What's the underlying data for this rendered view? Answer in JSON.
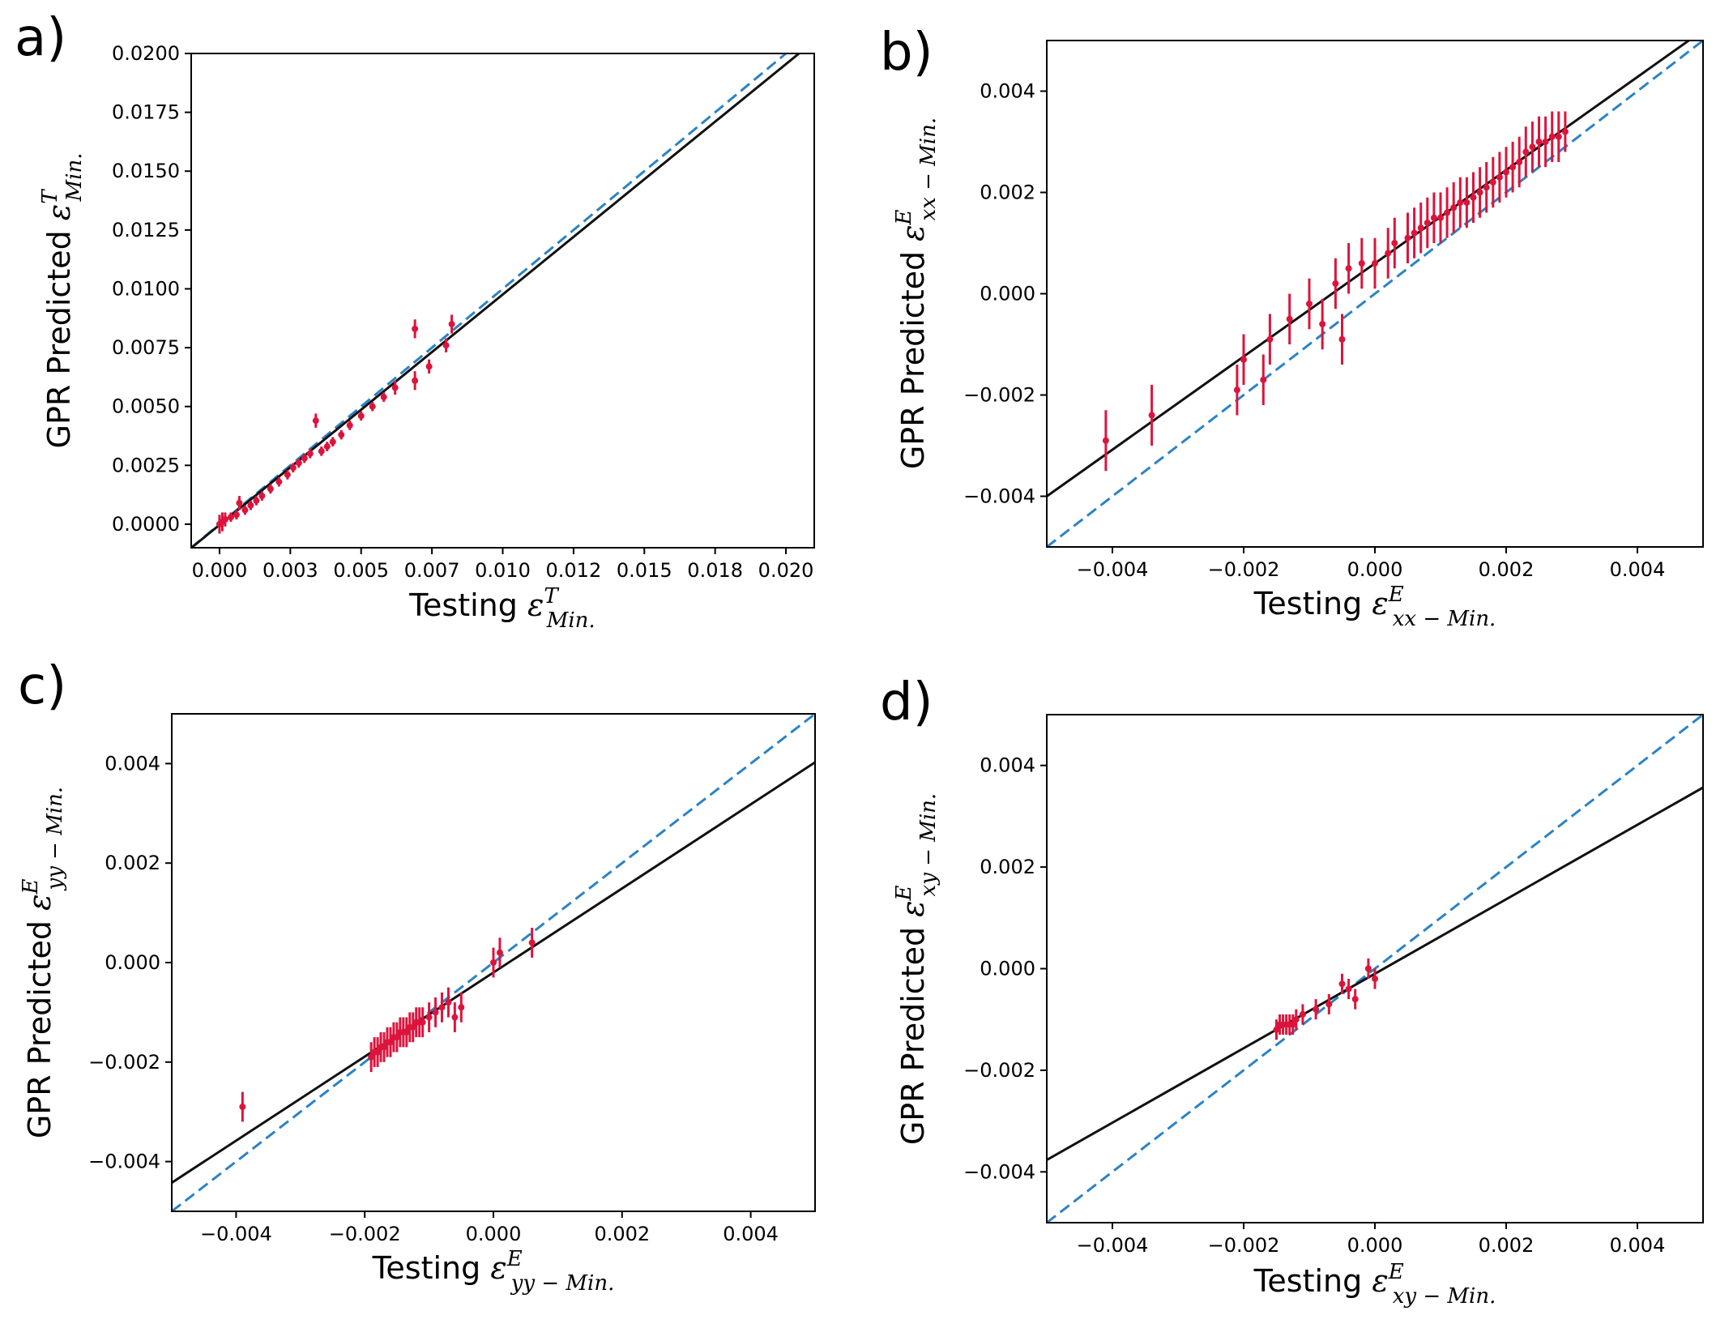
{
  "chart_data": [
    {
      "id": "a",
      "panel_label": "a)",
      "type": "scatter",
      "xlabel_prefix": "Testing ",
      "ylabel_prefix": "GPR Predicted ",
      "symbol": "ε",
      "superscript": "T",
      "subscript": "Min.",
      "xlim": [
        -0.001,
        0.021
      ],
      "ylim": [
        -0.001,
        0.02
      ],
      "xticks": [
        0.0,
        0.0025,
        0.005,
        0.0075,
        0.01,
        0.0125,
        0.015,
        0.0175,
        0.02
      ],
      "xtick_labels": [
        "0.000",
        "0.003",
        "0.005",
        "0.007",
        "0.010",
        "0.012",
        "0.015",
        "0.018",
        "0.020"
      ],
      "yticks": [
        0.0,
        0.0025,
        0.005,
        0.0075,
        0.01,
        0.0125,
        0.015,
        0.0175,
        0.02
      ],
      "ytick_labels": [
        "0.0000",
        "0.0025",
        "0.0050",
        "0.0075",
        "0.0100",
        "0.0125",
        "0.0150",
        "0.0175",
        "0.0200"
      ],
      "fit_line": {
        "slope": 0.9789,
        "intercept": -3e-05
      },
      "reference_line": {
        "slope": 1,
        "intercept": 0
      },
      "points": [
        [
          0.0,
          0.0,
          0.0004
        ],
        [
          0.0001,
          0.0001,
          0.0004
        ],
        [
          0.0002,
          0.0002,
          0.0003
        ],
        [
          0.0004,
          0.0003,
          0.0002
        ],
        [
          0.0006,
          0.0004,
          0.0002
        ],
        [
          0.0007,
          0.0009,
          0.0003
        ],
        [
          0.0009,
          0.0006,
          0.0002
        ],
        [
          0.0011,
          0.0008,
          0.0002
        ],
        [
          0.0013,
          0.001,
          0.0002
        ],
        [
          0.0015,
          0.0012,
          0.0002
        ],
        [
          0.0018,
          0.0015,
          0.0002
        ],
        [
          0.0021,
          0.0018,
          0.0002
        ],
        [
          0.0024,
          0.0021,
          0.0002
        ],
        [
          0.0026,
          0.0024,
          0.0002
        ],
        [
          0.0028,
          0.0026,
          0.0002
        ],
        [
          0.003,
          0.0028,
          0.0002
        ],
        [
          0.0032,
          0.003,
          0.0002
        ],
        [
          0.0034,
          0.0044,
          0.0003
        ],
        [
          0.0036,
          0.0031,
          0.0002
        ],
        [
          0.0038,
          0.0033,
          0.0002
        ],
        [
          0.004,
          0.0035,
          0.0002
        ],
        [
          0.0043,
          0.0038,
          0.0002
        ],
        [
          0.0046,
          0.0042,
          0.0002
        ],
        [
          0.005,
          0.0046,
          0.0002
        ],
        [
          0.0054,
          0.005,
          0.0002
        ],
        [
          0.0058,
          0.0054,
          0.0002
        ],
        [
          0.0062,
          0.0058,
          0.0003
        ],
        [
          0.0069,
          0.0061,
          0.0004
        ],
        [
          0.0069,
          0.0083,
          0.0004
        ],
        [
          0.0074,
          0.0067,
          0.0003
        ],
        [
          0.008,
          0.0076,
          0.0003
        ],
        [
          0.0082,
          0.0085,
          0.0004
        ]
      ]
    },
    {
      "id": "b",
      "panel_label": "b)",
      "type": "scatter",
      "xlabel_prefix": "Testing ",
      "ylabel_prefix": "GPR Predicted ",
      "symbol": "ε",
      "superscript": "E",
      "subscript": "xx − Min.",
      "xlim": [
        -0.005,
        0.005
      ],
      "ylim": [
        -0.005,
        0.005
      ],
      "xticks": [
        -0.004,
        -0.002,
        0.0,
        0.002,
        0.004
      ],
      "xtick_labels": [
        "−0.004",
        "−0.002",
        "0.000",
        "0.002",
        "0.004"
      ],
      "yticks": [
        -0.004,
        -0.002,
        0.0,
        0.002,
        0.004
      ],
      "ytick_labels": [
        "−0.004",
        "−0.002",
        "0.000",
        "0.002",
        "0.004"
      ],
      "fit_line": {
        "slope": 0.92,
        "intercept": 0.0006
      },
      "reference_line": {
        "slope": 1,
        "intercept": 0
      },
      "points": [
        [
          -0.0041,
          -0.0029,
          0.0006
        ],
        [
          -0.0034,
          -0.0024,
          0.0006
        ],
        [
          -0.0021,
          -0.0019,
          0.0005
        ],
        [
          -0.002,
          -0.0013,
          0.0005
        ],
        [
          -0.0017,
          -0.0017,
          0.0005
        ],
        [
          -0.0016,
          -0.0009,
          0.0005
        ],
        [
          -0.0013,
          -0.0005,
          0.0005
        ],
        [
          -0.001,
          -0.0002,
          0.0005
        ],
        [
          -0.0008,
          -0.0006,
          0.0005
        ],
        [
          -0.0006,
          0.0002,
          0.0005
        ],
        [
          -0.0005,
          -0.0009,
          0.0005
        ],
        [
          -0.0004,
          0.0005,
          0.0005
        ],
        [
          -0.0002,
          0.0006,
          0.0005
        ],
        [
          0.0,
          0.0006,
          0.0005
        ],
        [
          0.0002,
          0.0008,
          0.0005
        ],
        [
          0.0003,
          0.001,
          0.0005
        ],
        [
          0.0005,
          0.0011,
          0.0005
        ],
        [
          0.0006,
          0.0012,
          0.0005
        ],
        [
          0.0007,
          0.0013,
          0.0005
        ],
        [
          0.0008,
          0.0014,
          0.0005
        ],
        [
          0.0009,
          0.0015,
          0.0005
        ],
        [
          0.001,
          0.0015,
          0.0005
        ],
        [
          0.0011,
          0.0016,
          0.0005
        ],
        [
          0.0012,
          0.0017,
          0.0005
        ],
        [
          0.0013,
          0.0018,
          0.0005
        ],
        [
          0.0014,
          0.0018,
          0.0005
        ],
        [
          0.0015,
          0.0019,
          0.0005
        ],
        [
          0.0016,
          0.002,
          0.0005
        ],
        [
          0.0017,
          0.0021,
          0.0005
        ],
        [
          0.0018,
          0.0022,
          0.0005
        ],
        [
          0.0019,
          0.0023,
          0.0005
        ],
        [
          0.002,
          0.0024,
          0.0005
        ],
        [
          0.0021,
          0.0025,
          0.0005
        ],
        [
          0.0022,
          0.0026,
          0.0005
        ],
        [
          0.0023,
          0.0028,
          0.0005
        ],
        [
          0.0024,
          0.0029,
          0.0005
        ],
        [
          0.0025,
          0.003,
          0.0005
        ],
        [
          0.0026,
          0.003,
          0.0005
        ],
        [
          0.0027,
          0.0031,
          0.0005
        ],
        [
          0.0028,
          0.0031,
          0.0005
        ],
        [
          0.0029,
          0.0032,
          0.0004
        ]
      ]
    },
    {
      "id": "c",
      "panel_label": "c)",
      "type": "scatter",
      "xlabel_prefix": "Testing ",
      "ylabel_prefix": "GPR Predicted ",
      "symbol": "ε",
      "superscript": "E",
      "subscript": "yy − Min.",
      "xlim": [
        -0.005,
        0.005
      ],
      "ylim": [
        -0.005,
        0.005
      ],
      "xticks": [
        -0.004,
        -0.002,
        0.0,
        0.002,
        0.004
      ],
      "xtick_labels": [
        "−0.004",
        "−0.002",
        "0.000",
        "0.002",
        "0.004"
      ],
      "yticks": [
        -0.004,
        -0.002,
        0.0,
        0.002,
        0.004
      ],
      "ytick_labels": [
        "−0.004",
        "−0.002",
        "0.000",
        "0.002",
        "0.004"
      ],
      "fit_line": {
        "slope": 0.845,
        "intercept": -0.0002
      },
      "reference_line": {
        "slope": 1,
        "intercept": 0
      },
      "points": [
        [
          -0.0039,
          -0.0029,
          0.0003
        ],
        [
          -0.0019,
          -0.0019,
          0.0003
        ],
        [
          -0.00185,
          -0.0018,
          0.0003
        ],
        [
          -0.0018,
          -0.0018,
          0.0003
        ],
        [
          -0.00175,
          -0.0017,
          0.0003
        ],
        [
          -0.0017,
          -0.0017,
          0.0003
        ],
        [
          -0.00165,
          -0.0016,
          0.0003
        ],
        [
          -0.0016,
          -0.0016,
          0.0003
        ],
        [
          -0.00155,
          -0.0015,
          0.0003
        ],
        [
          -0.0015,
          -0.0015,
          0.0003
        ],
        [
          -0.00145,
          -0.0014,
          0.0003
        ],
        [
          -0.0014,
          -0.0014,
          0.0003
        ],
        [
          -0.00135,
          -0.0014,
          0.0003
        ],
        [
          -0.0013,
          -0.0013,
          0.0003
        ],
        [
          -0.00125,
          -0.0013,
          0.0003
        ],
        [
          -0.0012,
          -0.0012,
          0.0003
        ],
        [
          -0.00115,
          -0.0012,
          0.0003
        ],
        [
          -0.0011,
          -0.0012,
          0.0003
        ],
        [
          -0.001,
          -0.0011,
          0.0003
        ],
        [
          -0.0009,
          -0.001,
          0.0003
        ],
        [
          -0.0008,
          -0.0009,
          0.0003
        ],
        [
          -0.0007,
          -0.0008,
          0.0003
        ],
        [
          -0.0006,
          -0.0011,
          0.0003
        ],
        [
          -0.0005,
          -0.0009,
          0.0003
        ],
        [
          0.0,
          0.0,
          0.0003
        ],
        [
          0.0001,
          0.0002,
          0.0003
        ],
        [
          0.0006,
          0.0004,
          0.0003
        ]
      ]
    },
    {
      "id": "d",
      "panel_label": "d)",
      "type": "scatter",
      "xlabel_prefix": "Testing ",
      "ylabel_prefix": "GPR Predicted ",
      "symbol": "ε",
      "superscript": "E",
      "subscript": "xy − Min.",
      "xlim": [
        -0.005,
        0.005
      ],
      "ylim": [
        -0.005,
        0.005
      ],
      "xticks": [
        -0.004,
        -0.002,
        0.0,
        0.002,
        0.004
      ],
      "xtick_labels": [
        "−0.004",
        "−0.002",
        "0.000",
        "0.002",
        "0.004"
      ],
      "yticks": [
        -0.004,
        -0.002,
        0.0,
        0.002,
        0.004
      ],
      "ytick_labels": [
        "−0.004",
        "−0.002",
        "0.000",
        "0.002",
        "0.004"
      ],
      "fit_line": {
        "slope": 0.733,
        "intercept": -0.0001
      },
      "reference_line": {
        "slope": 1,
        "intercept": 0
      },
      "points": [
        [
          -0.0015,
          -0.0012,
          0.0002
        ],
        [
          -0.00145,
          -0.0011,
          0.0002
        ],
        [
          -0.0014,
          -0.0011,
          0.0002
        ],
        [
          -0.00135,
          -0.0011,
          0.0002
        ],
        [
          -0.0013,
          -0.0011,
          0.0002
        ],
        [
          -0.00125,
          -0.0011,
          0.0002
        ],
        [
          -0.0012,
          -0.001,
          0.0002
        ],
        [
          -0.0011,
          -0.0009,
          0.0002
        ],
        [
          -0.0009,
          -0.0008,
          0.0002
        ],
        [
          -0.0007,
          -0.0007,
          0.0002
        ],
        [
          -0.0005,
          -0.0003,
          0.0002
        ],
        [
          -0.0004,
          -0.0004,
          0.0002
        ],
        [
          -0.0003,
          -0.0006,
          0.0002
        ],
        [
          -0.0001,
          0.0,
          0.0002
        ],
        [
          0.0,
          -0.0002,
          0.0002
        ]
      ]
    }
  ]
}
